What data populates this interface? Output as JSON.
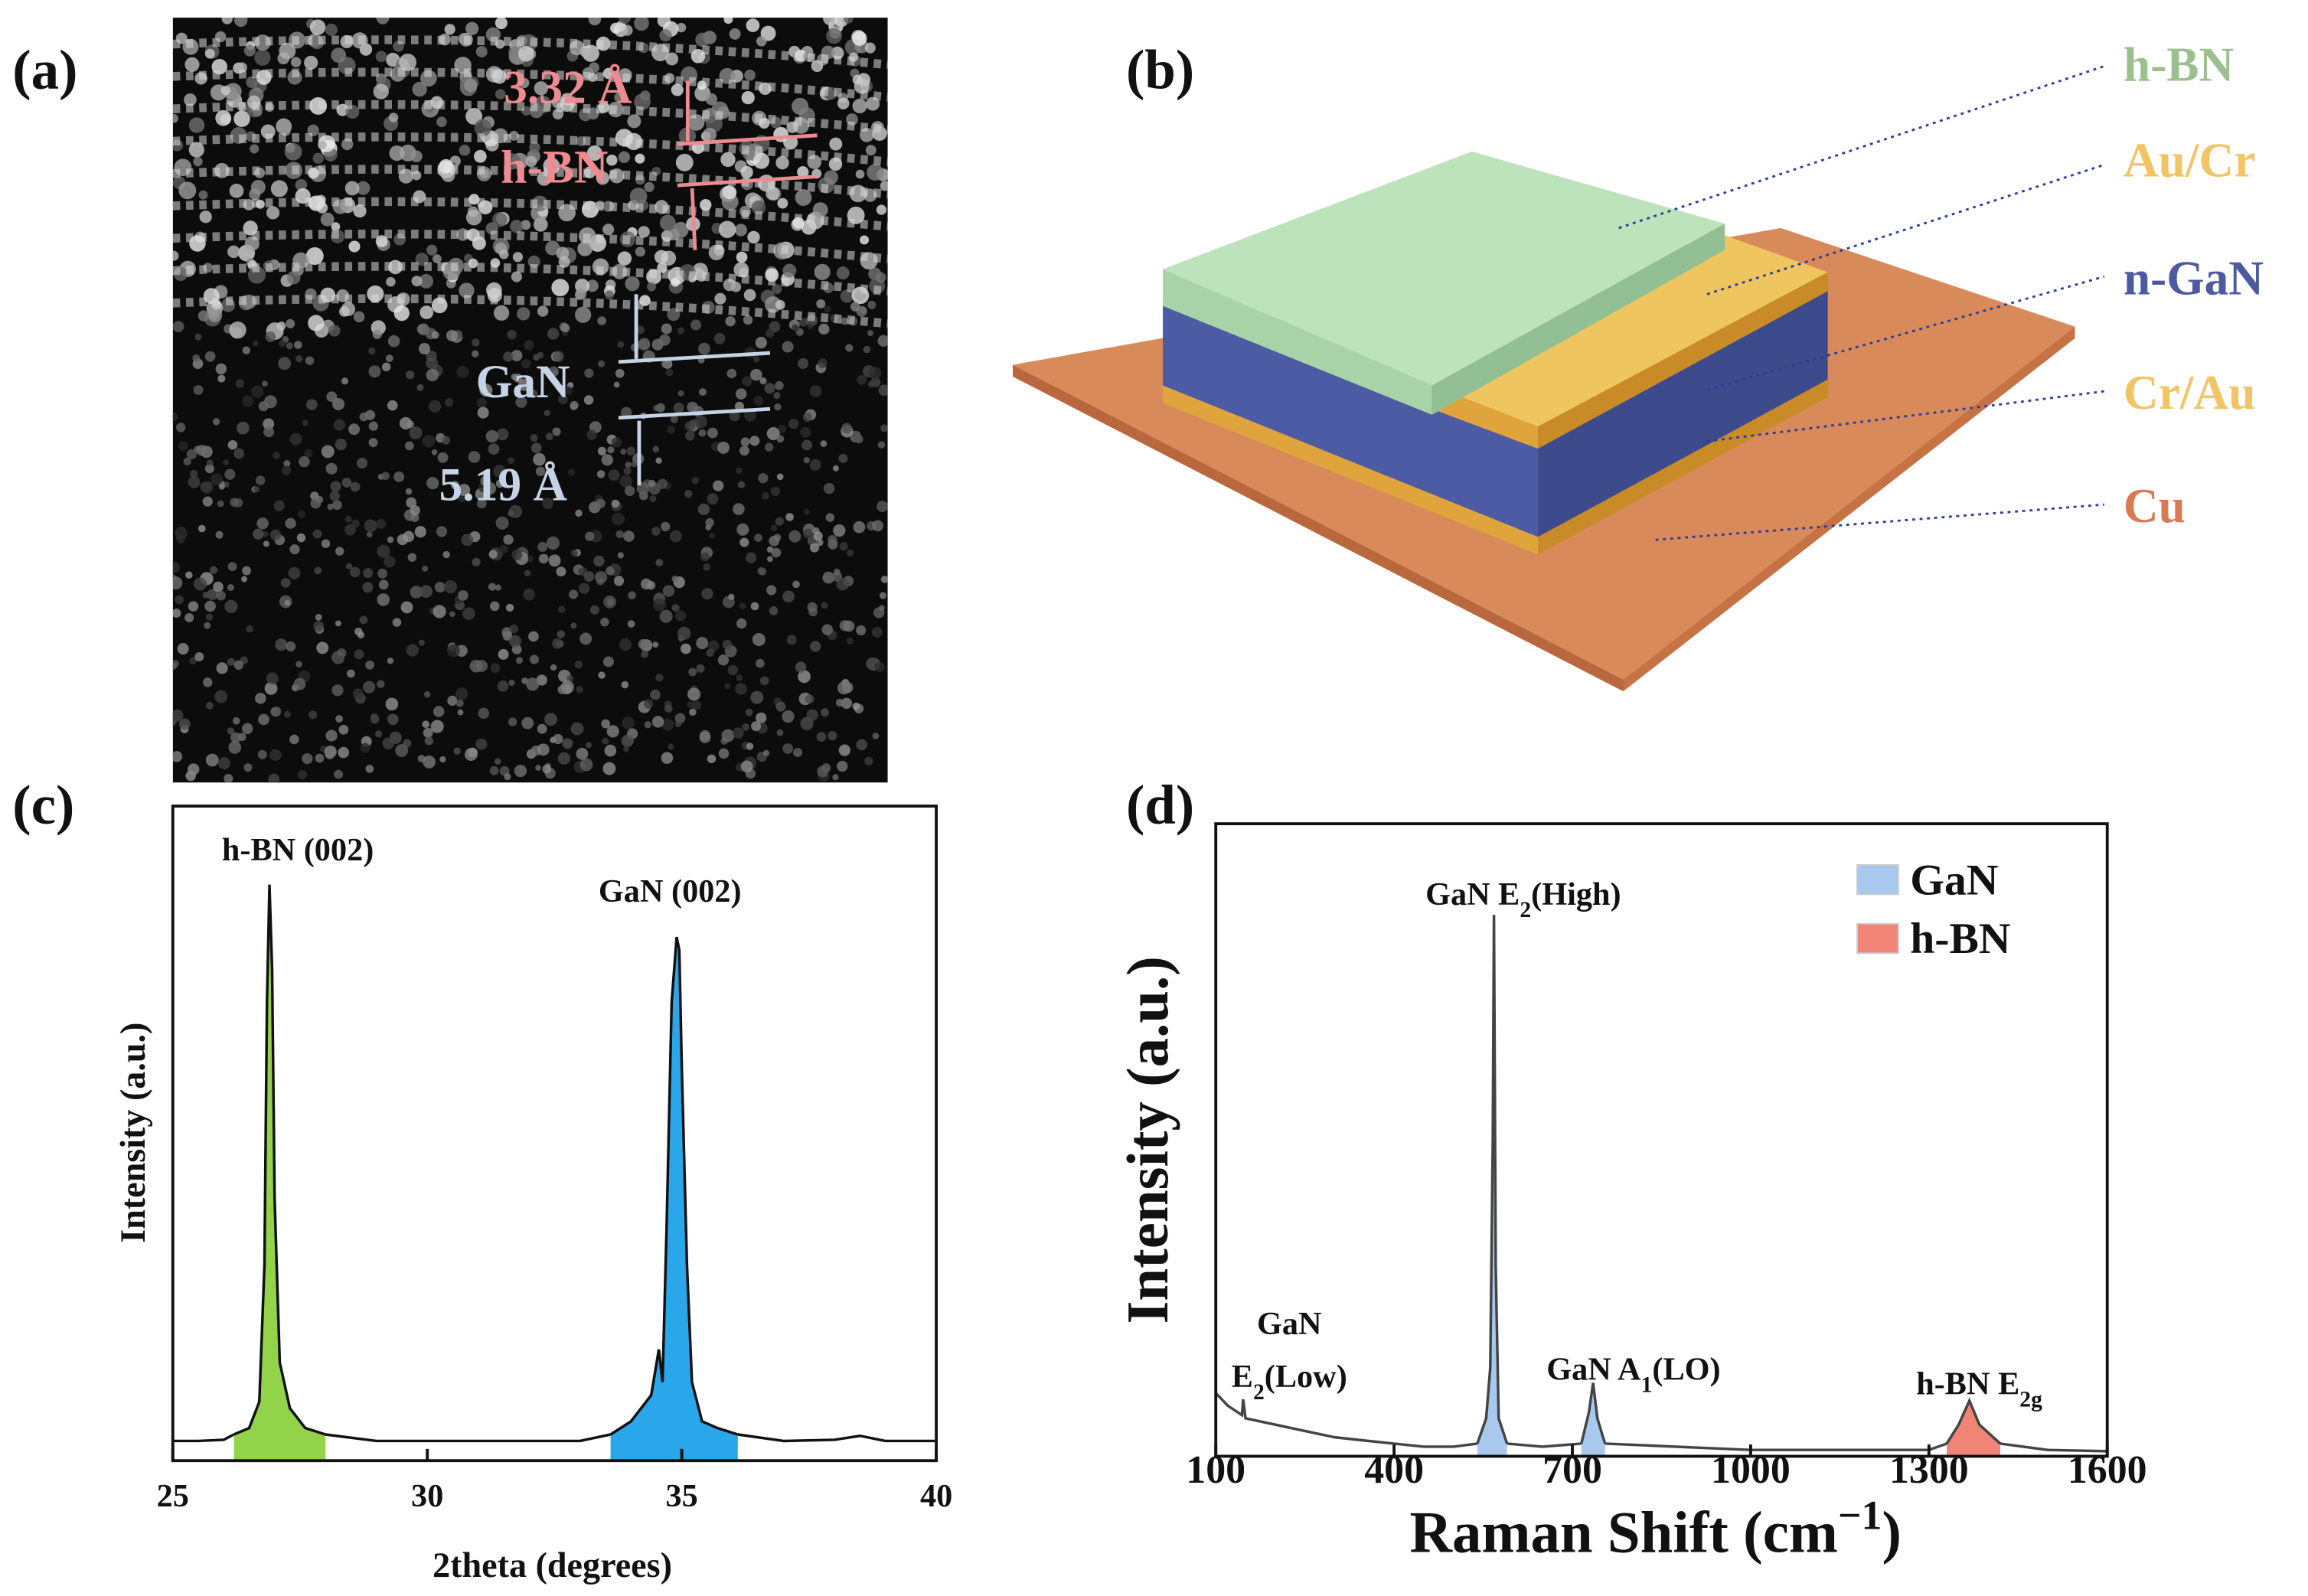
{
  "panel_labels": [
    "(a)",
    "(b)",
    "(c)",
    "(d)"
  ],
  "tem": {
    "hbn_spacing": "3.32 Å",
    "hbn_label": "h-BN",
    "gan_label": "GaN",
    "gan_spacing": "5.19 Å"
  },
  "device": {
    "layers": [
      {
        "label": "h-BN",
        "color": "#9cbf8f"
      },
      {
        "label": "Au/Cr",
        "color": "#f2c463"
      },
      {
        "label": "n-GaN",
        "color": "#4e5aa0"
      },
      {
        "label": "Cr/Au",
        "color": "#f2c463"
      },
      {
        "label": "Cu",
        "color": "#d87b53"
      }
    ]
  },
  "chart_data": [
    {
      "type": "line",
      "xlabel": "2theta (degrees)",
      "ylabel": "Intensity (a.u.)",
      "xlim": [
        25,
        40
      ],
      "ylim": [
        0,
        100
      ],
      "xticks": [
        25,
        30,
        35,
        40
      ],
      "annotations": [
        {
          "text": "h-BN (002)"
        },
        {
          "text": "GaN (002)"
        }
      ],
      "series": [
        {
          "color": "#111111",
          "fill": null,
          "x": [
            25,
            25.5,
            26,
            26.2
          ],
          "values": [
            3,
            3,
            3.2,
            4
          ]
        },
        {
          "color": "#111111",
          "fill": "#93d34a",
          "x": [
            26.2,
            26.5,
            26.7,
            26.8,
            26.85,
            26.9,
            26.95,
            27,
            27.1,
            27.3,
            27.6,
            28
          ],
          "values": [
            4,
            5,
            9,
            30,
            70,
            88,
            75,
            40,
            15,
            8,
            5,
            4
          ]
        },
        {
          "color": "#111111",
          "fill": null,
          "x": [
            28,
            29,
            30,
            31,
            32,
            33,
            33.6
          ],
          "values": [
            4,
            3,
            3,
            3,
            3,
            3,
            4
          ]
        },
        {
          "color": "#111111",
          "fill": "#2aa6ea",
          "x": [
            33.6,
            34,
            34.4,
            34.55,
            34.62,
            34.7,
            34.8,
            34.9,
            34.95,
            35,
            35.1,
            35.2,
            35.4,
            35.7,
            36.1
          ],
          "values": [
            4,
            6,
            10,
            17,
            12,
            35,
            70,
            80,
            78,
            60,
            30,
            12,
            6,
            5,
            4
          ]
        },
        {
          "color": "#111111",
          "fill": null,
          "x": [
            36.1,
            37,
            38,
            38.5,
            39,
            40
          ],
          "values": [
            4,
            3,
            3.2,
            3.8,
            3,
            3
          ]
        }
      ]
    },
    {
      "type": "line",
      "xlabel": {
        "text": "Raman Shift (cm",
        "sup": "−1",
        "tail": ")"
      },
      "ylabel": "Intensity (a.u.)",
      "xlim": [
        100,
        1600
      ],
      "ylim": [
        0,
        100
      ],
      "xticks": [
        100,
        400,
        700,
        1000,
        1300,
        1600
      ],
      "legend": [
        {
          "name": "GaN",
          "color": "#a9c8ee"
        },
        {
          "name": "h-BN",
          "color": "#f08577"
        }
      ],
      "annotations": [
        {
          "text": "GaN E",
          "sub": "2",
          "tail": "(High)"
        },
        {
          "text": "GaN"
        },
        {
          "text": "E",
          "sub": "2",
          "tail": "(Low)"
        },
        {
          "text": "GaN A",
          "sub": "1",
          "tail": "(LO)"
        },
        {
          "text": "h-BN E",
          "sub": "2g"
        }
      ],
      "series": [
        {
          "color": "#444444",
          "fill": null,
          "x": [
            100,
            120,
            144,
            146,
            150,
            200,
            250,
            300,
            350,
            400,
            450,
            500,
            540
          ],
          "values": [
            10,
            8,
            6.5,
            9,
            6,
            5,
            4,
            3,
            2.5,
            2,
            1.5,
            1.5,
            2
          ]
        },
        {
          "color": "#444444",
          "fill": "#a9c8ee",
          "x": [
            540,
            555,
            562,
            566,
            568,
            571,
            576,
            590
          ],
          "values": [
            2,
            6,
            14,
            50,
            85.6,
            30,
            6,
            2
          ]
        },
        {
          "color": "#444444",
          "fill": null,
          "x": [
            590,
            650,
            715
          ],
          "values": [
            2,
            1.5,
            2
          ]
        },
        {
          "color": "#444444",
          "fill": "#a9c8ee",
          "x": [
            715,
            728,
            735,
            742,
            755
          ],
          "values": [
            2,
            7,
            11.6,
            6,
            2
          ]
        },
        {
          "color": "#444444",
          "fill": null,
          "x": [
            755,
            1000,
            1300,
            1330
          ],
          "values": [
            2,
            1,
            1,
            2
          ]
        },
        {
          "color": "#444444",
          "fill": "#f08577",
          "x": [
            1330,
            1350,
            1368,
            1385,
            1420
          ],
          "values": [
            2,
            5,
            8.8,
            5,
            2
          ]
        },
        {
          "color": "#444444",
          "fill": null,
          "x": [
            1420,
            1500,
            1600
          ],
          "values": [
            2,
            1,
            0.8
          ]
        }
      ]
    }
  ]
}
